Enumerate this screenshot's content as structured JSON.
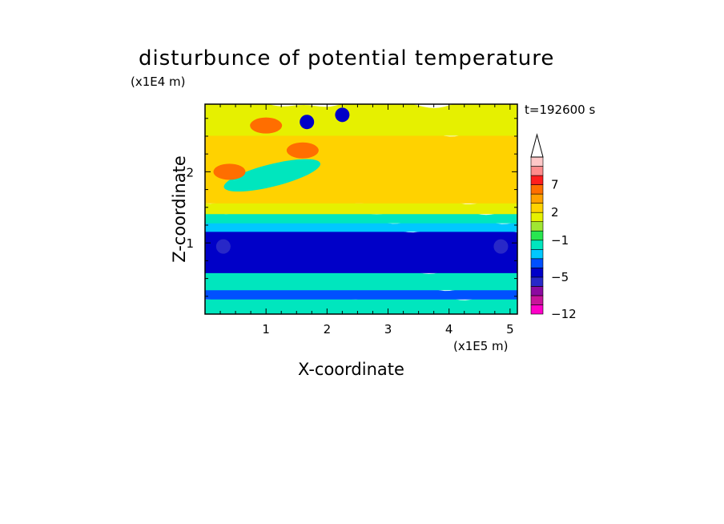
{
  "chart_data": {
    "type": "heatmap",
    "title": "disturbunce of potential temperature",
    "xlabel": "X-coordinate",
    "ylabel": "Z-coordinate",
    "x_unit_label": "(x1E5 m)",
    "y_unit_label": "(x1E4 m)",
    "time_label": "t=192600 s",
    "xlim": [
      0,
      5.12
    ],
    "ylim": [
      0,
      2.95
    ],
    "x_ticks": [
      "1",
      "2",
      "3",
      "4",
      "5"
    ],
    "x_tick_values": [
      1,
      2,
      3,
      4,
      5
    ],
    "y_ticks": [
      "1",
      "2"
    ],
    "y_tick_values": [
      1,
      2
    ],
    "colorbar": {
      "tick_labels": [
        "7",
        "2",
        "−1",
        "−5",
        "−12"
      ],
      "tick_values": [
        7,
        2,
        -1,
        -5,
        -12
      ],
      "levels": [
        -12,
        -10,
        -8,
        -6,
        -5,
        -4,
        -3,
        -2,
        -1,
        0,
        1,
        2,
        3,
        5,
        7,
        9,
        11
      ],
      "colors": [
        "#ff00c8",
        "#c8149b",
        "#8c0aa0",
        "#2828c8",
        "#0000c8",
        "#0050ff",
        "#00c8ff",
        "#00e6be",
        "#28e650",
        "#a0e632",
        "#e6f000",
        "#ffd200",
        "#ffa000",
        "#ff6e00",
        "#ff1e1e",
        "#ff8c8c",
        "#ffc8c8"
      ],
      "extend": "max"
    },
    "bands": [
      {
        "z": [
          0.0,
          0.05
        ],
        "value": -4
      },
      {
        "z": [
          0.05,
          0.25
        ],
        "value": -2
      },
      {
        "z": [
          0.25,
          0.38
        ],
        "value": -4
      },
      {
        "z": [
          0.38,
          0.62
        ],
        "value": -2
      },
      {
        "z": [
          0.62,
          1.2
        ],
        "value": -5
      },
      {
        "z": [
          1.2,
          1.32
        ],
        "value": -3
      },
      {
        "z": [
          1.32,
          1.45
        ],
        "value": -2
      },
      {
        "z": [
          1.45,
          1.6
        ],
        "value": 1
      },
      {
        "z": [
          1.6,
          2.55
        ],
        "value": 2
      },
      {
        "z": [
          2.55,
          2.95
        ],
        "value": 1
      }
    ],
    "features": [
      {
        "name": "cool lens upper left",
        "x": 1.1,
        "z": 1.95,
        "value": -2
      },
      {
        "name": "warm patch",
        "x": 1.0,
        "z": 2.65,
        "value": 5
      },
      {
        "name": "warm patch",
        "x": 1.6,
        "z": 2.3,
        "value": 5
      },
      {
        "name": "warm patch",
        "x": 0.4,
        "z": 2.0,
        "value": 5
      },
      {
        "name": "cold cell",
        "x": 1.67,
        "z": 2.7,
        "value": -5
      },
      {
        "name": "cold cell",
        "x": 2.25,
        "z": 2.8,
        "value": -5
      },
      {
        "name": "purple band left",
        "x": 0.3,
        "z": 0.95,
        "value": -6
      },
      {
        "name": "purple band right",
        "x": 4.85,
        "z": 0.95,
        "value": -6
      }
    ]
  }
}
